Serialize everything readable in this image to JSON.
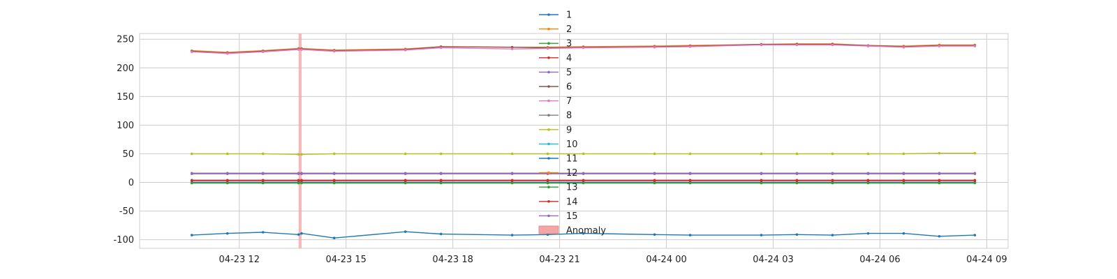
{
  "chart_data": {
    "type": "line",
    "title": "",
    "xlabel": "",
    "ylabel": "",
    "ylim": [
      -115,
      260
    ],
    "yticks": [
      -100,
      -50,
      0,
      50,
      100,
      150,
      200,
      250
    ],
    "xlim": [
      "2025-04-23 09:12",
      "2025-04-24 09:36"
    ],
    "xticks": [
      {
        "t": "2025-04-23 12:00",
        "label": "04-23 12"
      },
      {
        "t": "2025-04-23 15:00",
        "label": "04-23 15"
      },
      {
        "t": "2025-04-23 18:00",
        "label": "04-23 18"
      },
      {
        "t": "2025-04-23 21:00",
        "label": "04-23 21"
      },
      {
        "t": "2025-04-24 00:00",
        "label": "04-24 00"
      },
      {
        "t": "2025-04-24 03:00",
        "label": "04-24 03"
      },
      {
        "t": "2025-04-24 06:00",
        "label": "04-24 06"
      },
      {
        "t": "2025-04-24 09:00",
        "label": "04-24 09"
      }
    ],
    "grid": true,
    "legend_position": "top-center",
    "x": [
      "2025-04-23 10:40",
      "2025-04-23 11:40",
      "2025-04-23 12:40",
      "2025-04-23 13:40",
      "2025-04-23 13:45",
      "2025-04-23 14:40",
      "2025-04-23 16:40",
      "2025-04-23 17:40",
      "2025-04-23 19:40",
      "2025-04-23 20:40",
      "2025-04-23 21:40",
      "2025-04-23 23:40",
      "2025-04-24 00:40",
      "2025-04-24 02:40",
      "2025-04-24 03:40",
      "2025-04-24 04:40",
      "2025-04-24 05:40",
      "2025-04-24 06:40",
      "2025-04-24 07:40",
      "2025-04-24 08:40"
    ],
    "series": [
      {
        "name": "1",
        "color": "#1f77b4",
        "values": [
          -92,
          -89,
          -87,
          -91,
          -89,
          -97,
          -86,
          -90,
          -92,
          -91,
          -89,
          -91,
          -92,
          -92,
          -91,
          -92,
          -89,
          -89,
          -94,
          -92
        ]
      },
      {
        "name": "2",
        "color": "#ff7f0e",
        "values": [
          230,
          227,
          230,
          234,
          234,
          231,
          233,
          237,
          236,
          236,
          237,
          238,
          239,
          241,
          242,
          242,
          239,
          238,
          240,
          240
        ]
      },
      {
        "name": "3",
        "color": "#2ca02c",
        "values": [
          -1,
          -1,
          -1,
          -1,
          -1,
          -1,
          -1,
          -1,
          -1,
          -1,
          -1,
          -1,
          -1,
          -1,
          -1,
          -1,
          -1,
          -1,
          -1,
          -1
        ]
      },
      {
        "name": "4",
        "color": "#d62728",
        "values": [
          4,
          4,
          4,
          4,
          4,
          4,
          4,
          4,
          4,
          4,
          4,
          4,
          4,
          4,
          4,
          4,
          4,
          4,
          4,
          4
        ]
      },
      {
        "name": "5",
        "color": "#9467bd",
        "values": [
          15,
          15,
          15,
          15,
          15,
          15,
          15,
          15,
          15,
          15,
          15,
          15,
          15,
          15,
          15,
          15,
          15,
          15,
          15,
          15
        ]
      },
      {
        "name": "6",
        "color": "#8c564b",
        "values": [
          229,
          226,
          229,
          233,
          233,
          230,
          232,
          237,
          236,
          235,
          236,
          237,
          238,
          241,
          241,
          241,
          239,
          237,
          239,
          239
        ]
      },
      {
        "name": "7",
        "color": "#e377c2",
        "values": [
          228,
          225,
          228,
          232,
          232,
          229,
          231,
          235,
          233,
          234,
          235,
          236,
          237,
          240,
          240,
          240,
          238,
          236,
          238,
          238
        ]
      },
      {
        "name": "8",
        "color": "#7f7f7f",
        "values": [
          16,
          16,
          16,
          16,
          16,
          16,
          16,
          16,
          16,
          16,
          16,
          16,
          16,
          16,
          16,
          16,
          16,
          16,
          16,
          16
        ]
      },
      {
        "name": "9",
        "color": "#bcbd22",
        "values": [
          50,
          50,
          50,
          49,
          49,
          50,
          50,
          50,
          50,
          50,
          50,
          50,
          50,
          50,
          50,
          50,
          50,
          50,
          51,
          51
        ]
      },
      {
        "name": "10",
        "color": "#17becf",
        "values": [
          0,
          0,
          0,
          0,
          0,
          0,
          0,
          0,
          0,
          0,
          0,
          0,
          0,
          0,
          0,
          0,
          0,
          0,
          0,
          0
        ]
      },
      {
        "name": "11",
        "color": "#1f77b4",
        "values": [
          0,
          0,
          0,
          0,
          0,
          0,
          0,
          0,
          0,
          0,
          0,
          0,
          0,
          0,
          0,
          0,
          0,
          0,
          0,
          0
        ]
      },
      {
        "name": "12",
        "color": "#ff7f0e",
        "values": [
          16,
          16,
          16,
          16,
          16,
          16,
          16,
          16,
          16,
          16,
          16,
          16,
          16,
          16,
          16,
          16,
          16,
          16,
          16,
          16
        ]
      },
      {
        "name": "13",
        "color": "#2ca02c",
        "values": [
          -1,
          -1,
          -1,
          -1,
          -1,
          -1,
          -1,
          -1,
          -1,
          -1,
          -1,
          -1,
          -1,
          -1,
          -1,
          -1,
          -1,
          -1,
          -1,
          -1
        ]
      },
      {
        "name": "14",
        "color": "#d62728",
        "values": [
          3,
          3,
          3,
          3,
          3,
          3,
          3,
          3,
          3,
          3,
          3,
          3,
          3,
          3,
          3,
          3,
          3,
          3,
          3,
          3
        ]
      },
      {
        "name": "15",
        "color": "#9467bd",
        "values": [
          16,
          16,
          16,
          16,
          16,
          16,
          16,
          16,
          16,
          16,
          16,
          16,
          16,
          16,
          16,
          16,
          16,
          16,
          16,
          16
        ]
      }
    ],
    "anomaly": {
      "label": "Anomaly",
      "color": "#f4a6a6",
      "x": [
        "2025-04-23 13:40",
        "2025-04-23 13:45"
      ]
    }
  }
}
